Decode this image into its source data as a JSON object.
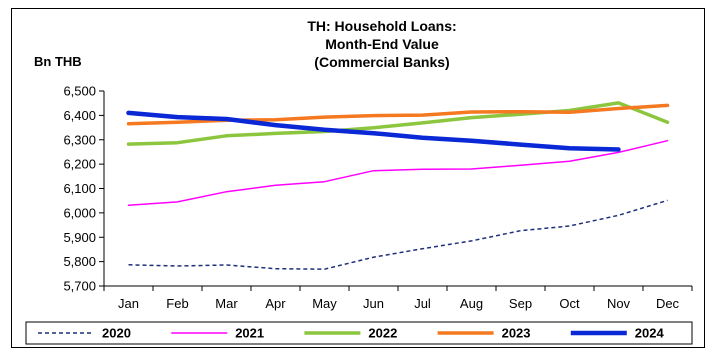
{
  "chart_data": {
    "type": "line",
    "title": [
      "TH: Household Loans:",
      "Month-End Value",
      "(Commercial Banks)"
    ],
    "ylabel": "Bn THB",
    "xlabel": "",
    "categories": [
      "Jan",
      "Feb",
      "Mar",
      "Apr",
      "May",
      "Jun",
      "Jul",
      "Aug",
      "Sep",
      "Oct",
      "Nov",
      "Dec"
    ],
    "ylim": [
      5700,
      6500
    ],
    "yticks": [
      "5,700",
      "5,800",
      "5,900",
      "6,000",
      "6,100",
      "6,200",
      "6,300",
      "6,400",
      "6,500"
    ],
    "grid": false,
    "legend_position": "bottom",
    "series": [
      {
        "name": "2020",
        "color": "#1f2f7a",
        "style": "dashed",
        "values": [
          5787,
          5782,
          5786,
          5771,
          5769,
          5818,
          5853,
          5885,
          5927,
          5946,
          5990,
          6051
        ]
      },
      {
        "name": "2021",
        "color": "#ff00ff",
        "style": "solid",
        "values": [
          6031,
          6045,
          6087,
          6113,
          6128,
          6173,
          6179,
          6180,
          6195,
          6212,
          6248,
          6296
        ]
      },
      {
        "name": "2022",
        "color": "#8cc63f",
        "style": "solid",
        "values": [
          6282,
          6288,
          6316,
          6326,
          6334,
          6349,
          6369,
          6391,
          6405,
          6420,
          6451,
          6372
        ]
      },
      {
        "name": "2023",
        "color": "#f47920",
        "style": "solid",
        "values": [
          6366,
          6372,
          6380,
          6382,
          6393,
          6399,
          6401,
          6414,
          6415,
          6413,
          6428,
          6441
        ]
      },
      {
        "name": "2024",
        "color": "#0a28d6",
        "style": "solid",
        "values": [
          6410,
          6393,
          6385,
          6360,
          6341,
          6327,
          6308,
          6296,
          6280,
          6265,
          6260,
          null
        ]
      }
    ]
  }
}
